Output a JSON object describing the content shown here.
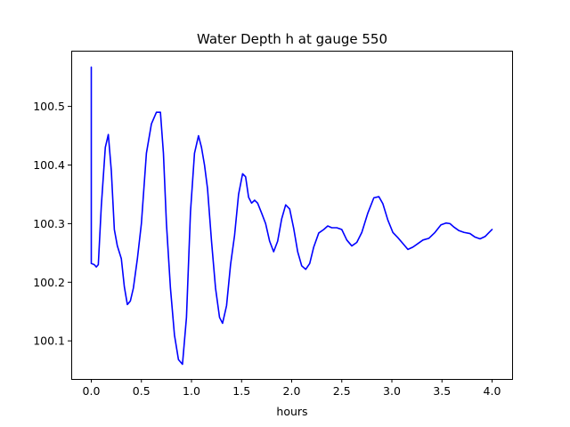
{
  "chart_data": {
    "type": "line",
    "title": "Water Depth h at gauge 550",
    "xlabel": "hours",
    "ylabel": "",
    "xlim": [
      -0.2,
      4.2
    ],
    "ylim": [
      100.035,
      100.595
    ],
    "xticks": [
      0.0,
      0.5,
      1.0,
      1.5,
      2.0,
      2.5,
      3.0,
      3.5,
      4.0
    ],
    "xtick_labels": [
      "0.0",
      "0.5",
      "1.0",
      "1.5",
      "2.0",
      "2.5",
      "3.0",
      "3.5",
      "4.0"
    ],
    "yticks": [
      100.1,
      100.2,
      100.3,
      100.4,
      100.5
    ],
    "ytick_labels": [
      "100.1",
      "100.2",
      "100.3",
      "100.4",
      "100.5"
    ],
    "grid": false,
    "series": [
      {
        "color": "#0000ff",
        "x": [
          0.0,
          0.0,
          0.0,
          0.03,
          0.05,
          0.07,
          0.1,
          0.14,
          0.17,
          0.2,
          0.23,
          0.26,
          0.3,
          0.33,
          0.36,
          0.39,
          0.42,
          0.46,
          0.5,
          0.55,
          0.6,
          0.65,
          0.69,
          0.72,
          0.75,
          0.79,
          0.83,
          0.87,
          0.91,
          0.95,
          0.99,
          1.03,
          1.07,
          1.1,
          1.13,
          1.16,
          1.2,
          1.24,
          1.28,
          1.31,
          1.35,
          1.39,
          1.43,
          1.47,
          1.51,
          1.54,
          1.57,
          1.6,
          1.63,
          1.66,
          1.7,
          1.74,
          1.78,
          1.82,
          1.86,
          1.9,
          1.94,
          1.98,
          2.02,
          2.06,
          2.1,
          2.14,
          2.18,
          2.22,
          2.27,
          2.32,
          2.36,
          2.4,
          2.45,
          2.5,
          2.55,
          2.6,
          2.65,
          2.7,
          2.76,
          2.82,
          2.87,
          2.91,
          2.96,
          3.01,
          3.06,
          3.11,
          3.16,
          3.21,
          3.26,
          3.31,
          3.37,
          3.43,
          3.49,
          3.54,
          3.58,
          3.62,
          3.67,
          3.72,
          3.78,
          3.83,
          3.88,
          3.93,
          3.97,
          4.0
        ],
        "y": [
          100.567,
          100.44,
          100.232,
          100.23,
          100.226,
          100.23,
          100.33,
          100.43,
          100.452,
          100.39,
          100.29,
          100.262,
          100.24,
          100.192,
          100.162,
          100.168,
          100.19,
          100.24,
          100.3,
          100.42,
          100.47,
          100.49,
          100.49,
          100.42,
          100.3,
          100.19,
          100.11,
          100.068,
          100.06,
          100.14,
          100.32,
          100.42,
          100.45,
          100.43,
          100.4,
          100.36,
          100.27,
          100.19,
          100.14,
          100.13,
          100.16,
          100.23,
          100.28,
          100.35,
          100.385,
          100.38,
          100.345,
          100.335,
          100.34,
          100.335,
          100.318,
          100.3,
          100.27,
          100.252,
          100.27,
          100.308,
          100.332,
          100.325,
          100.292,
          100.252,
          100.228,
          100.222,
          100.232,
          100.26,
          100.284,
          100.29,
          100.296,
          100.293,
          100.293,
          100.29,
          100.272,
          100.262,
          100.268,
          100.285,
          100.318,
          100.344,
          100.346,
          100.334,
          100.306,
          100.285,
          100.276,
          100.266,
          100.256,
          100.26,
          100.266,
          100.272,
          100.275,
          100.285,
          100.298,
          100.301,
          100.3,
          100.294,
          100.288,
          100.285,
          100.283,
          100.277,
          100.274,
          100.278,
          100.285,
          100.29
        ]
      }
    ]
  }
}
